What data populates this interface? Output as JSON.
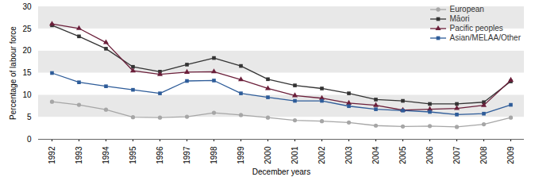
{
  "chart_data": {
    "type": "line",
    "x_label": "December years",
    "y_label": "Percentage of labour force",
    "categories": [
      "1992",
      "1993",
      "1994",
      "1995",
      "1996",
      "1997",
      "1998",
      "1999",
      "2000",
      "2001",
      "2002",
      "2003",
      "2004",
      "2005",
      "2006",
      "2007",
      "2008",
      "2009"
    ],
    "series": [
      {
        "name": "European",
        "color": "#a6a6a6",
        "marker": "circle",
        "values": [
          8.5,
          7.8,
          6.7,
          5.0,
          4.9,
          5.1,
          6.0,
          5.5,
          4.9,
          4.3,
          4.1,
          3.8,
          3.1,
          2.9,
          3.0,
          2.8,
          3.4,
          4.9
        ]
      },
      {
        "name": "Māori",
        "color": "#333333",
        "marker": "square",
        "values": [
          25.8,
          23.3,
          20.5,
          16.4,
          15.3,
          16.9,
          18.4,
          16.6,
          13.6,
          12.2,
          11.5,
          10.4,
          9.0,
          8.7,
          8.0,
          8.0,
          8.4,
          13.1
        ]
      },
      {
        "name": "Pacific peoples",
        "color": "#6b1f3a",
        "marker": "triangle",
        "values": [
          26.1,
          25.1,
          21.9,
          15.5,
          14.7,
          15.2,
          15.3,
          13.5,
          11.5,
          9.9,
          9.3,
          8.2,
          7.7,
          6.6,
          6.8,
          7.0,
          7.7,
          13.4
        ]
      },
      {
        "name": "Asian/MELAA/Other",
        "color": "#2e5c99",
        "marker": "square",
        "values": [
          15.0,
          12.9,
          12.0,
          11.2,
          10.4,
          13.2,
          13.3,
          10.4,
          9.5,
          8.7,
          8.7,
          7.5,
          6.8,
          6.5,
          6.2,
          5.6,
          5.8,
          7.8
        ]
      }
    ],
    "ylim": [
      0,
      30
    ],
    "yticks": [
      0,
      5,
      10,
      15,
      20,
      25,
      30
    ],
    "grid": true,
    "legend": "top-right"
  }
}
